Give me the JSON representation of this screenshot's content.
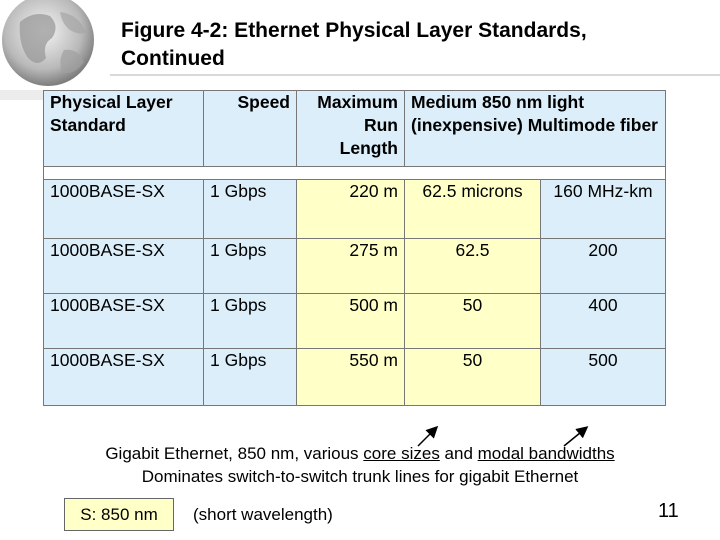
{
  "title": "Figure 4-2: Ethernet Physical Layer Standards, Continued",
  "table": {
    "headers": [
      "Physical Layer Standard",
      "Speed",
      "Maximum Run Length",
      "Medium 850 nm light (inexpensive) Multimode fiber"
    ],
    "rows": [
      [
        "1000BASE-SX",
        "1 Gbps",
        "220 m",
        "62.5 microns",
        "160 MHz-km"
      ],
      [
        "1000BASE-SX",
        "1 Gbps",
        "275 m",
        "62.5",
        "200"
      ],
      [
        "1000BASE-SX",
        "1 Gbps",
        "500 m",
        "50",
        "400"
      ],
      [
        "1000BASE-SX",
        "1 Gbps",
        "550 m",
        "50",
        "500"
      ]
    ]
  },
  "caption": {
    "line1_pre": "Gigabit Ethernet, 850 nm, various ",
    "line1_core": "core sizes",
    "line1_mid": " and ",
    "line1_modal": "modal bandwidths",
    "line2": "Dominates switch-to-switch trunk lines for gigabit Ethernet"
  },
  "s_box": "S: 850 nm",
  "short_wavelength": "(short wavelength)",
  "page_number": "11",
  "icons": {
    "globe": "globe-icon"
  },
  "colors": {
    "header_blue": "#dbeef9",
    "cell_yellow": "#ffffc8"
  }
}
